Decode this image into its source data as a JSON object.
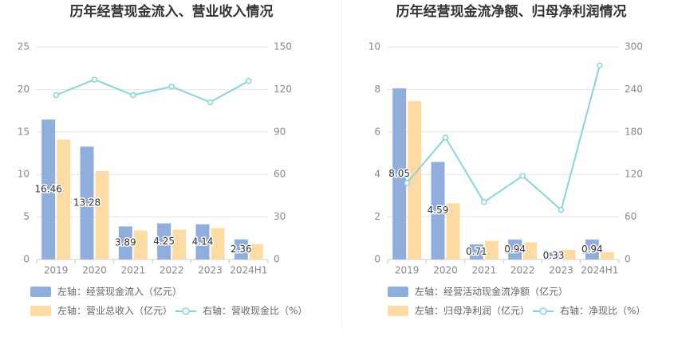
{
  "chart_data": [
    {
      "type": "bar+line",
      "title": "历年经营现金流入、营业收入情况",
      "categories": [
        "2019",
        "2020",
        "2021",
        "2022",
        "2023",
        "2024H1"
      ],
      "left_axis": {
        "range": [
          0,
          25
        ],
        "ticks": [
          "0",
          "5",
          "10",
          "15",
          "20",
          "25"
        ]
      },
      "right_axis": {
        "range": [
          0,
          150
        ],
        "ticks": [
          "0",
          "30",
          "60",
          "90",
          "120",
          "150"
        ]
      },
      "series": [
        {
          "name": "左轴：经营现金流入（亿元）",
          "type": "bar",
          "axis": "left",
          "color": "#8FAEDC",
          "values": [
            16.46,
            13.28,
            3.89,
            4.25,
            4.14,
            2.36
          ],
          "labels": [
            "16.46",
            "13.28",
            "3.89",
            "4.25",
            "4.14",
            "2.36"
          ]
        },
        {
          "name": "左轴：营业总收入（亿元）",
          "type": "bar",
          "axis": "left",
          "color": "#FDDBA3",
          "values": [
            14.1,
            10.4,
            3.4,
            3.5,
            3.7,
            1.8
          ]
        },
        {
          "name": "右轴：营收现金比（%）",
          "type": "line",
          "axis": "right",
          "color": "#8AD5DB",
          "values": [
            116,
            127,
            116,
            122,
            111,
            126
          ]
        }
      ]
    },
    {
      "type": "bar+line",
      "title": "历年经营现金流净额、归母净利润情况",
      "categories": [
        "2019",
        "2020",
        "2021",
        "2022",
        "2023",
        "2024H1"
      ],
      "left_axis": {
        "range": [
          0,
          10
        ],
        "ticks": [
          "0",
          "2",
          "4",
          "6",
          "8",
          "10"
        ]
      },
      "right_axis": {
        "range": [
          0,
          300
        ],
        "ticks": [
          "0",
          "60",
          "120",
          "180",
          "240",
          "300"
        ]
      },
      "series": [
        {
          "name": "左轴：经营活动现金流净额（亿元）",
          "type": "bar",
          "axis": "left",
          "color": "#8FAEDC",
          "values": [
            8.05,
            4.59,
            0.71,
            0.94,
            0.33,
            0.94
          ],
          "labels": [
            "8.05",
            "4.59",
            "0.71",
            "0.94",
            "0.33",
            "0.94"
          ]
        },
        {
          "name": "左轴：归母净利润（亿元）",
          "type": "bar",
          "axis": "left",
          "color": "#FDDBA3",
          "values": [
            7.45,
            2.65,
            0.88,
            0.8,
            0.45,
            0.35
          ]
        },
        {
          "name": "右轴：净现比（%）",
          "type": "line",
          "axis": "right",
          "color": "#8AD5DB",
          "values": [
            108,
            172,
            81,
            118,
            70,
            274
          ]
        }
      ]
    }
  ]
}
